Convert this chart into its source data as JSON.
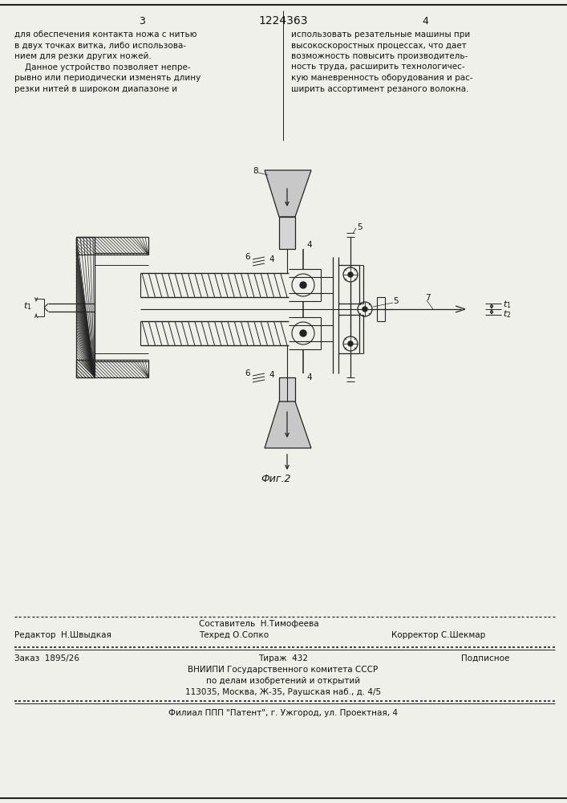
{
  "bg_color": "#f0f0eb",
  "line_color": "#222222",
  "text_color": "#111111",
  "title_text": "1224363",
  "page_left": "3",
  "page_right": "4",
  "left_col_text": [
    "для обеспечения контакта ножа с нитью",
    "в двух точках витка, либо использова-",
    "нием для резки других ножей.",
    "    Данное устройство позволяет непре-",
    "рывно или периодически изменять длину",
    "резки нитей в широком диапазоне и"
  ],
  "right_col_text": [
    "использовать резательные машины при",
    "высокоскоростных процессах, что дает",
    "возможность повысить производитель-",
    "ность труда, расширить технологичес-",
    "кую маневренность оборудования и рас-",
    "ширить ассортимент резаного волокна."
  ],
  "fig_caption": "Фиг.2",
  "editor_line": "Редактор  Н.Швыдкая",
  "compiler_line": "Составитель  Н.Тимофеева",
  "techred_line": "Техред О.Сопко",
  "corrector_line": "Корректор С.Шекмар",
  "order_line": "Заказ  1895/26",
  "print_line": "Тираж  432",
  "subscription_line": "Подписное",
  "org_line1": "ВНИИПИ Государственного комитета СССР",
  "org_line2": "по делам изобретений и открытий",
  "org_line3": "113035, Москва, Ж-35, Раушская наб., д. 4/5",
  "branch_line": "Филиал ППП \"Патент\", г. Ужгород, ул. Проектная, 4"
}
